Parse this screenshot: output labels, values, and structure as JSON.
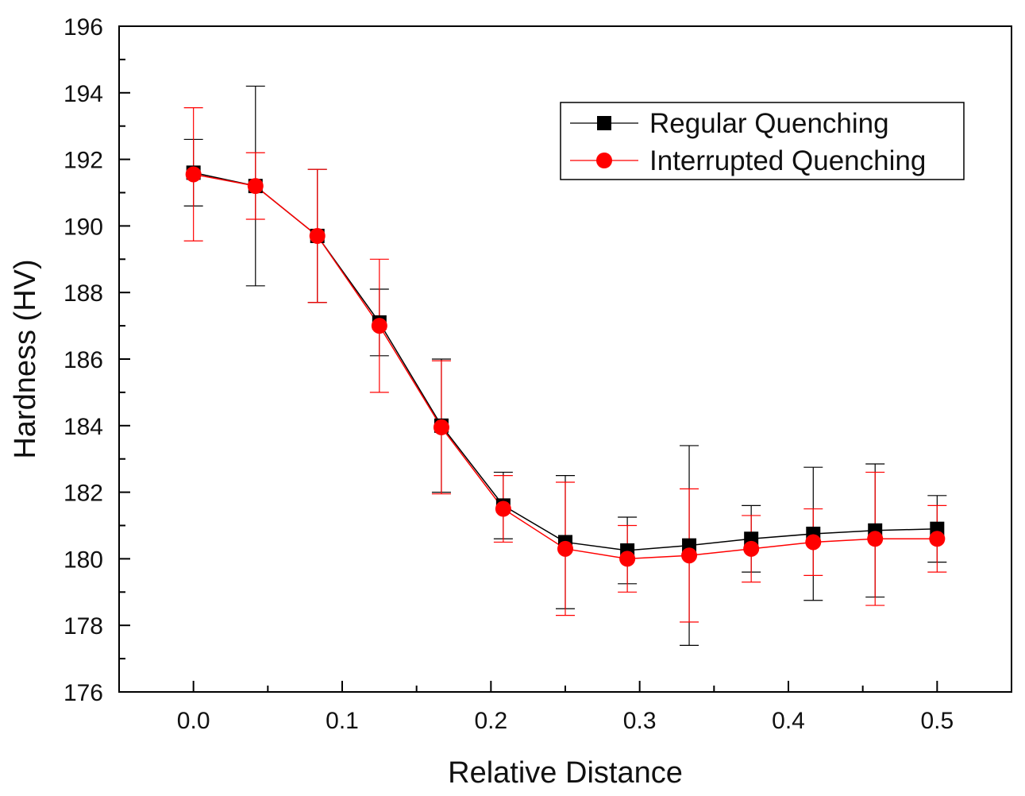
{
  "chart_data": {
    "type": "line",
    "xlabel": "Relative Distance",
    "ylabel": "Hardness (HV)",
    "xlim": [
      -0.05,
      0.55
    ],
    "ylim": [
      176,
      196
    ],
    "xticks": [
      0.0,
      0.1,
      0.2,
      0.3,
      0.4,
      0.5
    ],
    "xtick_labels": [
      "0.0",
      "0.1",
      "0.2",
      "0.3",
      "0.4",
      "0.5"
    ],
    "yticks": [
      176,
      178,
      180,
      182,
      184,
      186,
      188,
      190,
      192,
      194,
      196
    ],
    "ytick_labels": [
      "176",
      "178",
      "180",
      "182",
      "184",
      "186",
      "188",
      "190",
      "192",
      "194",
      "196"
    ],
    "legend_position": "top-right",
    "x": [
      0.0,
      0.0417,
      0.0833,
      0.125,
      0.1667,
      0.2083,
      0.25,
      0.2917,
      0.3333,
      0.375,
      0.4167,
      0.4583,
      0.5
    ],
    "series": [
      {
        "name": "Regular Quenching",
        "color": "#000000",
        "marker": "square",
        "values": [
          191.6,
          191.2,
          189.7,
          187.1,
          184.0,
          181.6,
          180.5,
          180.25,
          180.4,
          180.6,
          180.75,
          180.85,
          180.9
        ],
        "errors": [
          1.0,
          3.0,
          2.0,
          1.0,
          2.0,
          1.0,
          2.0,
          1.0,
          3.0,
          1.0,
          2.0,
          2.0,
          1.0
        ]
      },
      {
        "name": "Interrupted Quenching",
        "color": "#ff0000",
        "marker": "circle",
        "values": [
          191.55,
          191.2,
          189.7,
          187.0,
          183.95,
          181.5,
          180.3,
          180.0,
          180.1,
          180.3,
          180.5,
          180.6,
          180.6
        ],
        "errors": [
          2.0,
          1.0,
          2.0,
          2.0,
          2.0,
          1.0,
          2.0,
          1.0,
          2.0,
          1.0,
          1.0,
          2.0,
          1.0
        ]
      }
    ]
  }
}
